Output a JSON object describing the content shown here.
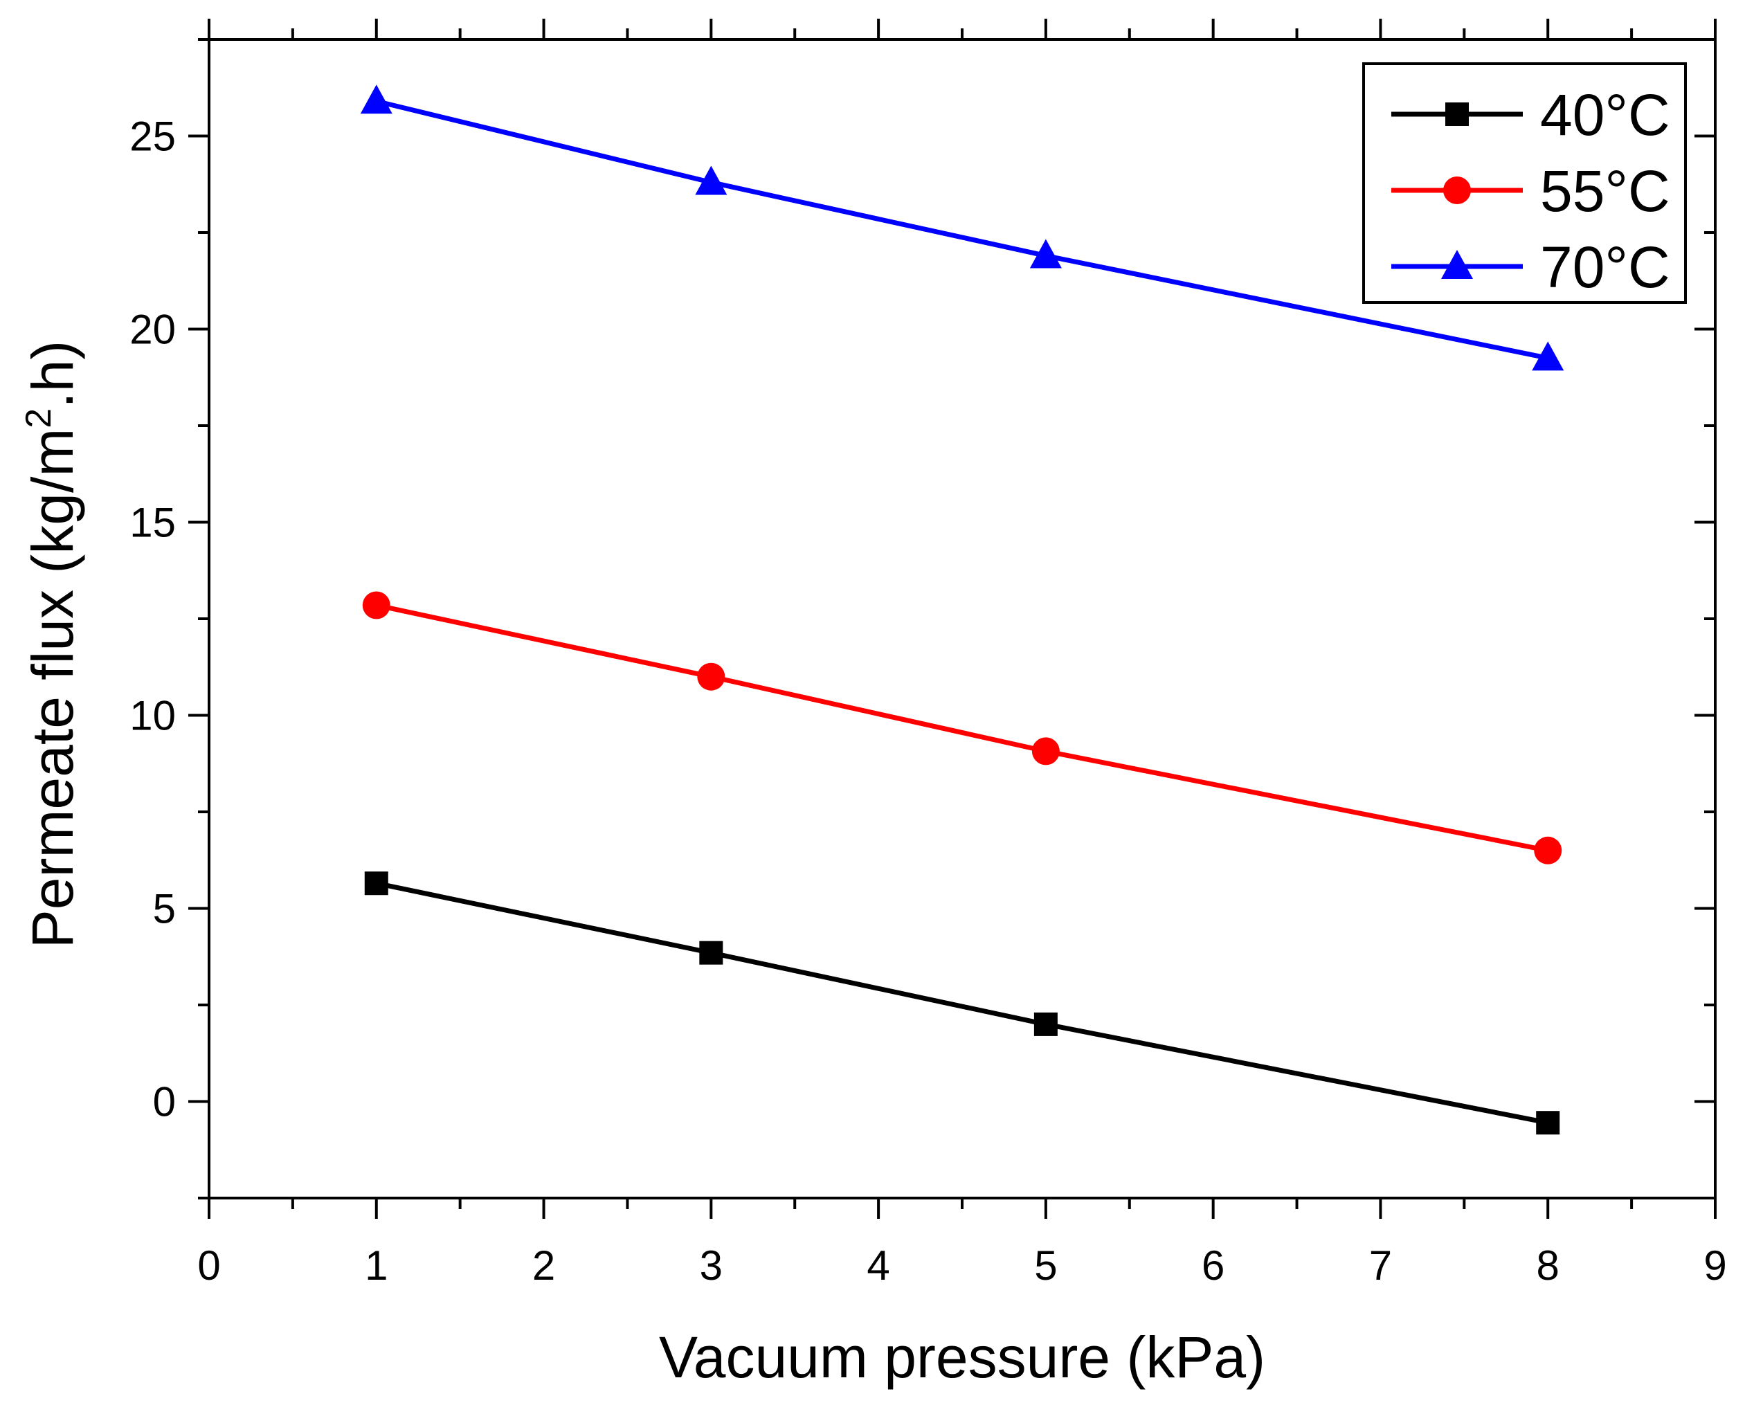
{
  "chart_data": {
    "type": "line",
    "xlabel": "Vacuum pressure (kPa)",
    "ylabel": "Permeate flux (kg/m2.h)",
    "ylabel_parts": {
      "before": "Permeate flux (kg/m",
      "sup": "2",
      "after": ".h)"
    },
    "xlim": [
      0,
      9
    ],
    "ylim": [
      -2.5,
      27.5
    ],
    "x_ticks": [
      "0",
      "1",
      "2",
      "3",
      "4",
      "5",
      "6",
      "7",
      "8",
      "9"
    ],
    "y_ticks": [
      "0",
      "5",
      "10",
      "15",
      "20",
      "25"
    ],
    "x_tick_values": [
      0,
      1,
      2,
      3,
      4,
      5,
      6,
      7,
      8,
      9
    ],
    "y_tick_values": [
      0,
      5,
      10,
      15,
      20,
      25
    ],
    "x_minor_step": 0.5,
    "y_minor_step": 2.5,
    "grid": false,
    "legend_position": "top-right",
    "x": [
      1,
      3,
      5,
      8
    ],
    "series": [
      {
        "name": "40°C",
        "marker": "square",
        "color": "#000000",
        "values": [
          5.65,
          3.85,
          2.0,
          -0.55
        ]
      },
      {
        "name": "55°C",
        "marker": "circle",
        "color": "#ff0000",
        "values": [
          12.85,
          11.0,
          9.07,
          6.5
        ]
      },
      {
        "name": "70°C",
        "marker": "triangle",
        "color": "#0000ff",
        "values": [
          25.9,
          23.8,
          21.9,
          19.25
        ]
      }
    ]
  }
}
